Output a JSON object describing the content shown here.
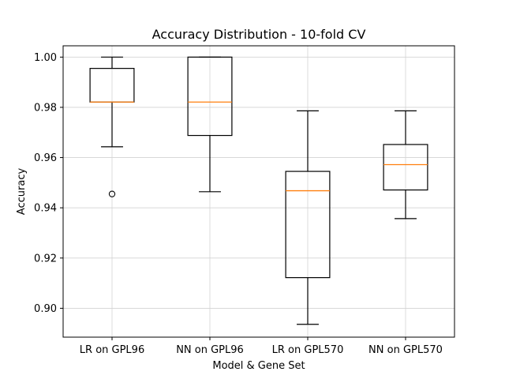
{
  "chart_data": {
    "type": "box",
    "title": "Accuracy Distribution - 10-fold CV",
    "xlabel": "Model & Gene Set",
    "ylabel": "Accuracy",
    "ylim": [
      0.8885,
      1.0045
    ],
    "yticks": [
      0.9,
      0.92,
      0.94,
      0.96,
      0.98,
      1.0
    ],
    "ytick_labels": [
      "0.90",
      "0.92",
      "0.94",
      "0.96",
      "0.98",
      "1.00"
    ],
    "grid": true,
    "categories": [
      "LR on GPL96",
      "NN on GPL96",
      "LR on GPL570",
      "NN on GPL570"
    ],
    "boxes": [
      {
        "whisker_low": 0.9643,
        "q1": 0.9821,
        "median": 0.9821,
        "q3": 0.9955,
        "whisker_high": 1.0,
        "outliers": [
          0.9455
        ]
      },
      {
        "whisker_low": 0.9464,
        "q1": 0.9688,
        "median": 0.9821,
        "q3": 1.0,
        "whisker_high": 1.0,
        "outliers": []
      },
      {
        "whisker_low": 0.8936,
        "q1": 0.9122,
        "median": 0.9468,
        "q3": 0.9545,
        "whisker_high": 0.9786,
        "outliers": []
      },
      {
        "whisker_low": 0.9357,
        "q1": 0.9471,
        "median": 0.9572,
        "q3": 0.9652,
        "whisker_high": 0.9786,
        "outliers": []
      }
    ],
    "colors": {
      "box": "#000000",
      "median": "#ff7f0e",
      "grid": "#d3d3d3"
    }
  }
}
